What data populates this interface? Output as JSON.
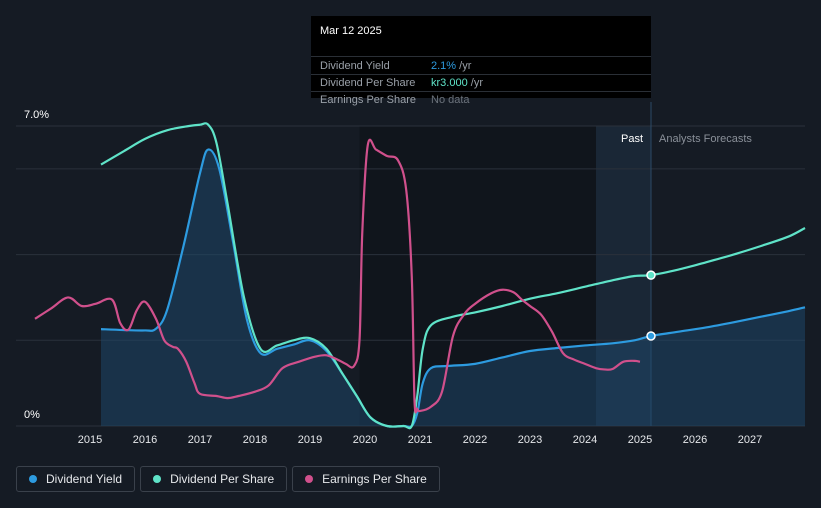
{
  "tooltip": {
    "date": "Mar 12 2025",
    "rows": [
      {
        "label": "Dividend Yield",
        "value": "2.1%",
        "unit": " /yr",
        "color": "#2d9be0"
      },
      {
        "label": "Dividend Per Share",
        "value": "kr3.000",
        "unit": " /yr",
        "color": "#5fe3c8"
      },
      {
        "label": "Earnings Per Share",
        "value": "No data",
        "unit": "",
        "color": "#6b727b"
      }
    ]
  },
  "chart_data": {
    "type": "line",
    "title": "",
    "y_top_label": "7.0%",
    "y_bottom_label": "0%",
    "ylim": [
      0,
      7.0
    ],
    "xlim": [
      2014.0,
      2028.0
    ],
    "x_ticks": [
      "2015",
      "2016",
      "2017",
      "2018",
      "2019",
      "2020",
      "2021",
      "2022",
      "2023",
      "2024",
      "2025",
      "2026",
      "2027"
    ],
    "past_label": "Past",
    "forecast_label": "Analysts Forecasts",
    "past_region": [
      2024.2,
      2025.2
    ],
    "divider_x": 2025.2,
    "series": [
      {
        "name": "Dividend Yield",
        "color": "#2d9be0",
        "filled": true,
        "x": [
          2015.2,
          2015.6,
          2016.0,
          2016.2,
          2016.4,
          2016.7,
          2017.0,
          2017.15,
          2017.35,
          2017.6,
          2017.85,
          2018.1,
          2018.4,
          2018.7,
          2019.0,
          2019.3,
          2019.6,
          2019.85,
          2020.1,
          2020.4,
          2020.7,
          2020.85,
          2020.95,
          2021.05,
          2021.2,
          2021.5,
          2022.0,
          2022.5,
          2023.0,
          2023.5,
          2024.0,
          2024.5,
          2024.9,
          2025.2,
          2025.7,
          2026.2,
          2026.7,
          2027.2,
          2027.7,
          2028.0
        ],
        "y": [
          2.26,
          2.24,
          2.23,
          2.27,
          2.7,
          4.2,
          5.9,
          6.45,
          6.0,
          4.3,
          2.5,
          1.7,
          1.8,
          1.9,
          2.0,
          1.75,
          1.2,
          0.7,
          0.2,
          0.0,
          0.0,
          0.0,
          0.3,
          1.0,
          1.35,
          1.4,
          1.45,
          1.6,
          1.75,
          1.82,
          1.88,
          1.93,
          2.0,
          2.1,
          2.2,
          2.3,
          2.42,
          2.55,
          2.68,
          2.77
        ]
      },
      {
        "name": "Dividend Per Share",
        "color": "#5fe3c8",
        "filled": false,
        "x": [
          2015.2,
          2015.6,
          2016.0,
          2016.4,
          2016.8,
          2017.0,
          2017.15,
          2017.3,
          2017.5,
          2017.8,
          2018.1,
          2018.4,
          2018.7,
          2019.0,
          2019.3,
          2019.6,
          2019.85,
          2020.1,
          2020.4,
          2020.7,
          2020.85,
          2020.95,
          2021.05,
          2021.2,
          2021.6,
          2022.0,
          2022.5,
          2023.0,
          2023.5,
          2024.0,
          2024.5,
          2024.9,
          2025.2,
          2025.7,
          2026.2,
          2026.7,
          2027.2,
          2027.7,
          2028.0
        ],
        "y": [
          6.1,
          6.4,
          6.7,
          6.9,
          7.0,
          7.03,
          7.03,
          6.6,
          5.2,
          3.0,
          1.8,
          1.88,
          2.0,
          2.05,
          1.8,
          1.2,
          0.7,
          0.2,
          0.0,
          0.0,
          0.0,
          0.7,
          1.8,
          2.35,
          2.55,
          2.65,
          2.8,
          2.97,
          3.1,
          3.25,
          3.4,
          3.5,
          3.52,
          3.65,
          3.82,
          4.0,
          4.2,
          4.42,
          4.62
        ]
      },
      {
        "name": "Earnings Per Share",
        "color": "#d0508c",
        "filled": false,
        "x": [
          2014.0,
          2014.3,
          2014.6,
          2014.85,
          2015.1,
          2015.4,
          2015.55,
          2015.7,
          2015.85,
          2016.0,
          2016.2,
          2016.35,
          2016.5,
          2016.6,
          2016.75,
          2016.9,
          2017.0,
          2017.3,
          2017.5,
          2017.7,
          2018.0,
          2018.25,
          2018.5,
          2018.8,
          2019.1,
          2019.3,
          2019.5,
          2019.65,
          2019.8,
          2019.9,
          2019.95,
          2020.05,
          2020.2,
          2020.4,
          2020.6,
          2020.75,
          2020.85,
          2020.9,
          2020.95,
          2021.0,
          2021.2,
          2021.4,
          2021.6,
          2021.8,
          2022.0,
          2022.3,
          2022.5,
          2022.7,
          2022.85,
          2023.0,
          2023.2,
          2023.4,
          2023.6,
          2023.8,
          2024.0,
          2024.2,
          2024.35,
          2024.5,
          2024.7,
          2024.9,
          2025.0
        ],
        "y": [
          2.5,
          2.75,
          3.0,
          2.8,
          2.85,
          2.95,
          2.4,
          2.25,
          2.7,
          2.9,
          2.5,
          2.0,
          1.85,
          1.8,
          1.5,
          1.0,
          0.75,
          0.7,
          0.65,
          0.7,
          0.8,
          0.95,
          1.35,
          1.5,
          1.62,
          1.65,
          1.55,
          1.45,
          1.4,
          2.0,
          4.5,
          6.55,
          6.45,
          6.3,
          6.2,
          5.5,
          3.5,
          0.6,
          0.4,
          0.35,
          0.45,
          0.8,
          2.1,
          2.6,
          2.85,
          3.1,
          3.18,
          3.12,
          2.95,
          2.8,
          2.6,
          2.2,
          1.7,
          1.55,
          1.45,
          1.35,
          1.32,
          1.33,
          1.5,
          1.52,
          1.5
        ]
      }
    ],
    "highlight_x": 2025.2
  },
  "legend": [
    {
      "label": "Dividend Yield",
      "color": "#2d9be0"
    },
    {
      "label": "Dividend Per Share",
      "color": "#5fe3c8"
    },
    {
      "label": "Earnings Per Share",
      "color": "#d0508c"
    }
  ]
}
